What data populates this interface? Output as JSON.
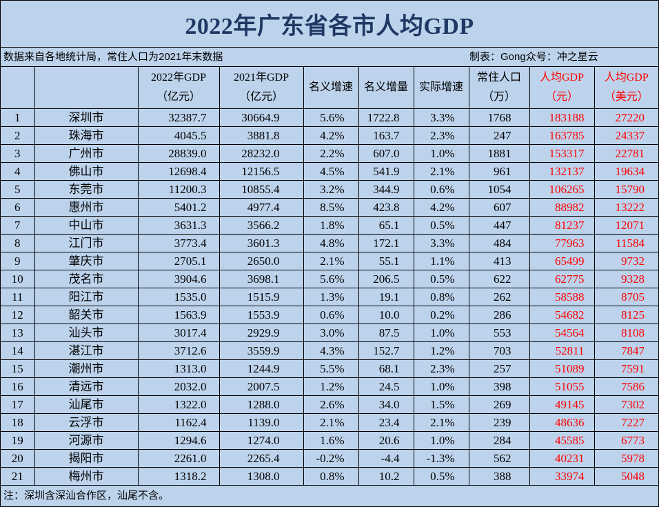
{
  "title": "2022年广东省各市人均GDP",
  "source_note": "数据来自各地统计局，常住人口为2021年末数据",
  "credit": "制表：Gong众号：冲之星云",
  "footnote": "注：深圳含深汕合作区，汕尾不含。",
  "colors": {
    "background": "#bdd3ec",
    "title": "#1f3864",
    "highlight": "#ff0000",
    "grid": "#000000"
  },
  "chart_data": {
    "type": "table",
    "columns": [
      {
        "line1": "",
        "line2": ""
      },
      {
        "line1": "",
        "line2": ""
      },
      {
        "line1": "2022年GDP",
        "line2": "（亿元）"
      },
      {
        "line1": "2021年GDP",
        "line2": "（亿元）"
      },
      {
        "line1": "名义增速",
        "line2": ""
      },
      {
        "line1": "名义增量",
        "line2": ""
      },
      {
        "line1": "实际增速",
        "line2": ""
      },
      {
        "line1": "常住人口",
        "line2": "（万）"
      },
      {
        "line1": "人均GDP",
        "line2": "（元）",
        "highlight": true
      },
      {
        "line1": "人均GDP",
        "line2": "（美元）",
        "highlight": true
      }
    ],
    "rows": [
      [
        "1",
        "深圳市",
        "32387.7",
        "30664.9",
        "5.6%",
        "1722.8",
        "3.3%",
        "1768",
        "183188",
        "27220"
      ],
      [
        "2",
        "珠海市",
        "4045.5",
        "3881.8",
        "4.2%",
        "163.7",
        "2.3%",
        "247",
        "163785",
        "24337"
      ],
      [
        "3",
        "广州市",
        "28839.0",
        "28232.0",
        "2.2%",
        "607.0",
        "1.0%",
        "1881",
        "153317",
        "22781"
      ],
      [
        "4",
        "佛山市",
        "12698.4",
        "12156.5",
        "4.5%",
        "541.9",
        "2.1%",
        "961",
        "132137",
        "19634"
      ],
      [
        "5",
        "东莞市",
        "11200.3",
        "10855.4",
        "3.2%",
        "344.9",
        "0.6%",
        "1054",
        "106265",
        "15790"
      ],
      [
        "6",
        "惠州市",
        "5401.2",
        "4977.4",
        "8.5%",
        "423.8",
        "4.2%",
        "607",
        "88982",
        "13222"
      ],
      [
        "7",
        "中山市",
        "3631.3",
        "3566.2",
        "1.8%",
        "65.1",
        "0.5%",
        "447",
        "81237",
        "12071"
      ],
      [
        "8",
        "江门市",
        "3773.4",
        "3601.3",
        "4.8%",
        "172.1",
        "3.3%",
        "484",
        "77963",
        "11584"
      ],
      [
        "9",
        "肇庆市",
        "2705.1",
        "2650.0",
        "2.1%",
        "55.1",
        "1.1%",
        "413",
        "65499",
        "9732"
      ],
      [
        "10",
        "茂名市",
        "3904.6",
        "3698.1",
        "5.6%",
        "206.5",
        "0.5%",
        "622",
        "62775",
        "9328"
      ],
      [
        "11",
        "阳江市",
        "1535.0",
        "1515.9",
        "1.3%",
        "19.1",
        "0.8%",
        "262",
        "58588",
        "8705"
      ],
      [
        "12",
        "韶关市",
        "1563.9",
        "1553.9",
        "0.6%",
        "10.0",
        "0.2%",
        "286",
        "54682",
        "8125"
      ],
      [
        "13",
        "汕头市",
        "3017.4",
        "2929.9",
        "3.0%",
        "87.5",
        "1.0%",
        "553",
        "54564",
        "8108"
      ],
      [
        "14",
        "湛江市",
        "3712.6",
        "3559.9",
        "4.3%",
        "152.7",
        "1.2%",
        "703",
        "52811",
        "7847"
      ],
      [
        "15",
        "潮州市",
        "1313.0",
        "1244.9",
        "5.5%",
        "68.1",
        "2.3%",
        "257",
        "51089",
        "7591"
      ],
      [
        "16",
        "清远市",
        "2032.0",
        "2007.5",
        "1.2%",
        "24.5",
        "1.0%",
        "398",
        "51055",
        "7586"
      ],
      [
        "17",
        "汕尾市",
        "1322.0",
        "1288.0",
        "2.6%",
        "34.0",
        "1.5%",
        "269",
        "49145",
        "7302"
      ],
      [
        "18",
        "云浮市",
        "1162.4",
        "1139.0",
        "2.1%",
        "23.4",
        "2.1%",
        "239",
        "48636",
        "7227"
      ],
      [
        "19",
        "河源市",
        "1294.6",
        "1274.0",
        "1.6%",
        "20.6",
        "1.0%",
        "284",
        "45585",
        "6773"
      ],
      [
        "20",
        "揭阳市",
        "2261.0",
        "2265.4",
        "-0.2%",
        "-4.4",
        "-1.3%",
        "562",
        "40231",
        "5978"
      ],
      [
        "21",
        "梅州市",
        "1318.2",
        "1308.0",
        "0.8%",
        "10.2",
        "0.5%",
        "388",
        "33974",
        "5048"
      ]
    ]
  }
}
